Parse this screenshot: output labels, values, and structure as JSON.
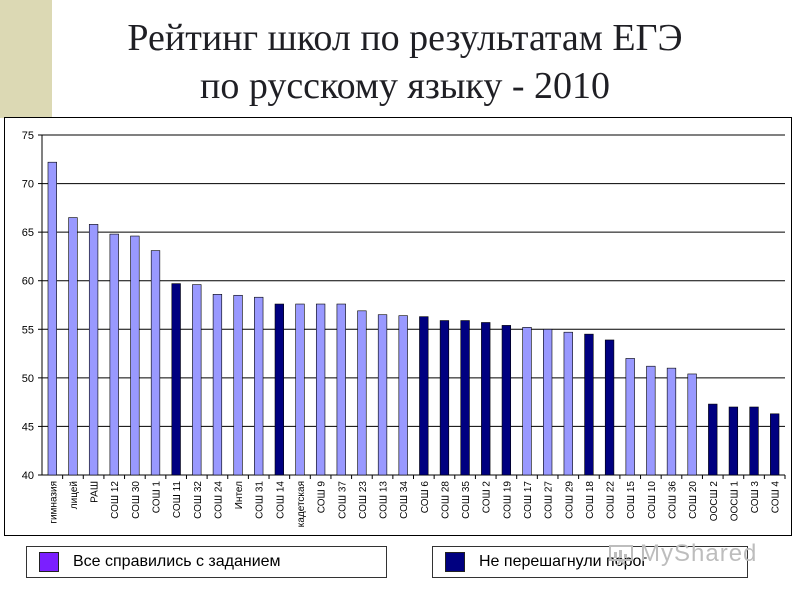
{
  "title_line1": "Рейтинг школ по результатам ЕГЭ",
  "title_line2": "по русскому языку - 2010",
  "colors": {
    "passed": "#9999ff",
    "failed": "#000080",
    "band": "#dcd9b4"
  },
  "legend": [
    {
      "label": "Все справились с заданием",
      "color": "#7b1fff",
      "icon": "square-swatch"
    },
    {
      "label": "Не перешагнули порог",
      "color": "#000080",
      "icon": "square-swatch"
    }
  ],
  "watermark": "MyShared",
  "chart_data": {
    "type": "bar",
    "title": "",
    "xlabel": "",
    "ylabel": "",
    "ylim": [
      40,
      75
    ],
    "yticks": [
      40,
      45,
      50,
      55,
      60,
      65,
      70,
      75
    ],
    "grid": true,
    "legend_position": "bottom",
    "categories": [
      "гимназия",
      "лицей",
      "РАШ",
      "СОШ 12",
      "СОШ 30",
      "СОШ 1",
      "СОШ 11",
      "СОШ 32",
      "СОШ 24",
      "Интел",
      "СОШ 31",
      "СОШ 14",
      "кадетская",
      "СОШ 9",
      "СОШ 37",
      "СОШ 23",
      "СОШ 13",
      "СОШ 34",
      "СОШ 6",
      "СОШ 28",
      "СОШ 35",
      "СОШ 2",
      "СОШ 19",
      "СОШ 17",
      "СОШ 27",
      "СОШ 29",
      "СОШ 18",
      "СОШ 22",
      "СОШ 15",
      "СОШ 10",
      "СОШ 36",
      "СОШ 20",
      "ООСШ 2",
      "ООСШ 1",
      "СОШ 3",
      "СОШ 4"
    ],
    "values": [
      72.2,
      66.5,
      65.8,
      64.8,
      64.6,
      63.1,
      59.7,
      59.6,
      58.6,
      58.5,
      58.3,
      57.6,
      57.6,
      57.6,
      57.6,
      56.9,
      56.5,
      56.4,
      56.3,
      55.9,
      55.9,
      55.7,
      55.4,
      55.2,
      55.0,
      54.7,
      54.5,
      53.9,
      52.0,
      51.2,
      51.0,
      50.4,
      47.3,
      47.0,
      47.0,
      46.3
    ],
    "failed_threshold": [
      false,
      false,
      false,
      false,
      false,
      false,
      true,
      false,
      false,
      false,
      false,
      true,
      false,
      false,
      false,
      false,
      false,
      false,
      true,
      true,
      true,
      true,
      true,
      false,
      false,
      false,
      true,
      true,
      false,
      false,
      false,
      false,
      true,
      true,
      true,
      true
    ],
    "series": [
      {
        "name": "Все справились с заданием"
      },
      {
        "name": "Не перешагнули порог"
      }
    ]
  }
}
